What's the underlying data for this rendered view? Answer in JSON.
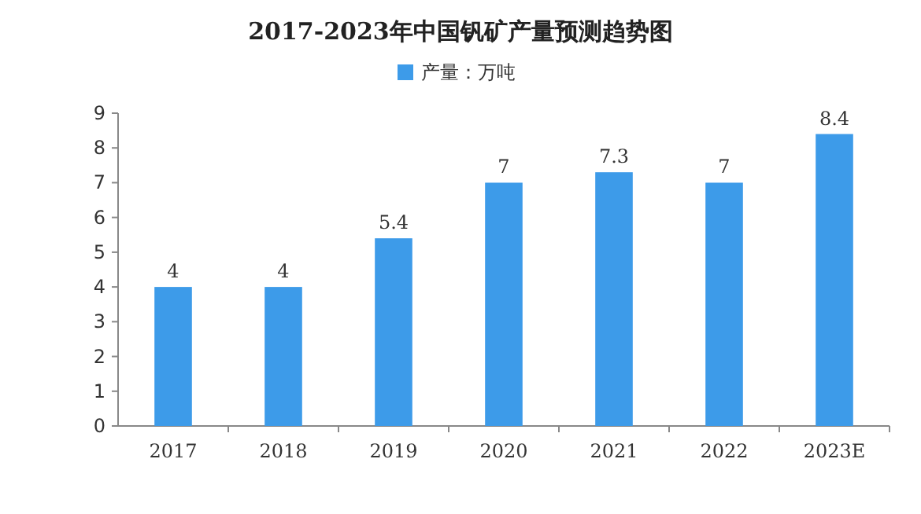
{
  "chart_data": {
    "type": "bar",
    "title": "2017-2023年中国钒矿产量预测趋势图",
    "categories": [
      "2017",
      "2018",
      "2019",
      "2020",
      "2021",
      "2022",
      "2023E"
    ],
    "series": [
      {
        "name": "产量：万吨",
        "color": "#3d9be9",
        "values": [
          4,
          4,
          5.4,
          7,
          7.3,
          7,
          8.4
        ]
      }
    ],
    "ylim": [
      0,
      9
    ],
    "yticks": [
      0,
      1,
      2,
      3,
      4,
      5,
      6,
      7,
      8,
      9
    ],
    "data_labels": true,
    "legend": "top"
  }
}
